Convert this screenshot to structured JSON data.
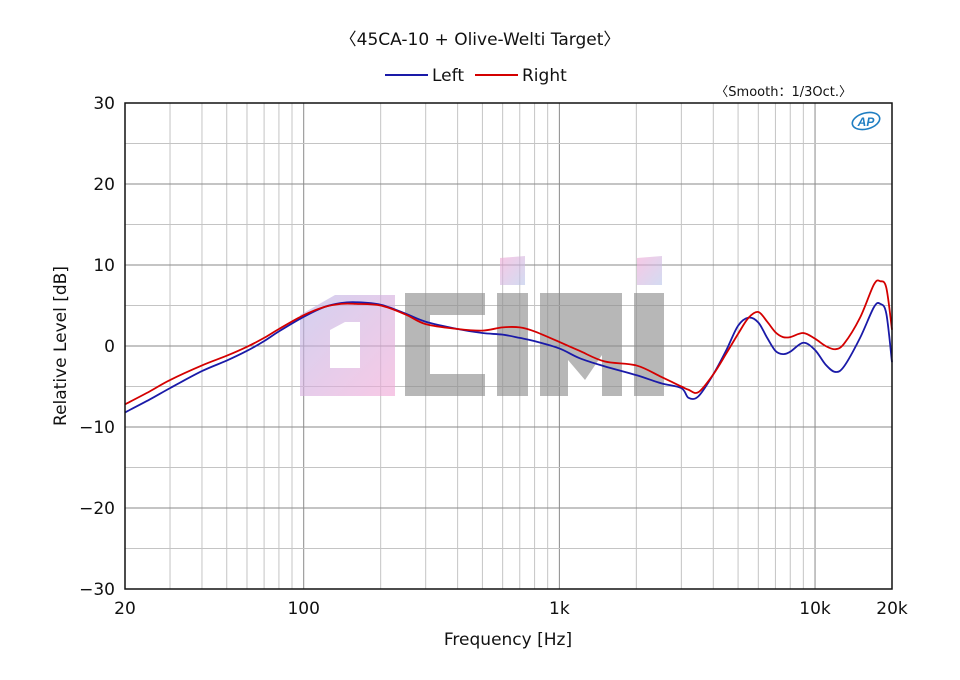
{
  "chart_data": {
    "type": "line",
    "title": "〈45CA-10 + Olive-Welti Target〉",
    "annotation": "〈Smooth：1/3Oct.〉",
    "logo": "AP",
    "watermark": "DCINSIDE",
    "xlabel": "Frequency [Hz]",
    "ylabel": "Relative Level [dB]",
    "x_scale": "log",
    "xlim": [
      20,
      20000
    ],
    "ylim": [
      -30,
      30
    ],
    "grid": true,
    "legend_position": "top-center",
    "x_ticks": [
      {
        "value": 20,
        "label": "20"
      },
      {
        "value": 100,
        "label": "100"
      },
      {
        "value": 1000,
        "label": "1k"
      },
      {
        "value": 10000,
        "label": "10k"
      },
      {
        "value": 20000,
        "label": "20k"
      }
    ],
    "y_ticks": [
      {
        "value": 30,
        "label": "30"
      },
      {
        "value": 20,
        "label": "20"
      },
      {
        "value": 10,
        "label": "10"
      },
      {
        "value": 0,
        "label": "0"
      },
      {
        "value": -10,
        "label": "−10"
      },
      {
        "value": -20,
        "label": "−20"
      },
      {
        "value": -30,
        "label": "−30"
      }
    ],
    "series": [
      {
        "name": "Left",
        "color": "#1a1aa8",
        "x": [
          20,
          25,
          30,
          40,
          50,
          60,
          70,
          80,
          100,
          120,
          140,
          160,
          200,
          250,
          300,
          400,
          500,
          600,
          700,
          800,
          1000,
          1200,
          1500,
          2000,
          2500,
          3000,
          3200,
          3500,
          4000,
          4500,
          5000,
          5500,
          6000,
          6500,
          7000,
          7500,
          8000,
          9000,
          10000,
          11000,
          12000,
          13000,
          15000,
          17000,
          18000,
          19000,
          20000
        ],
        "y": [
          -8.2,
          -6.6,
          -5.2,
          -3.1,
          -1.8,
          -0.6,
          0.6,
          1.8,
          3.6,
          4.8,
          5.3,
          5.4,
          5.1,
          4.0,
          3.0,
          2.1,
          1.6,
          1.4,
          1.0,
          0.6,
          -0.3,
          -1.5,
          -2.5,
          -3.6,
          -4.6,
          -5.2,
          -6.4,
          -6.2,
          -3.5,
          -0.5,
          2.5,
          3.5,
          2.9,
          1.0,
          -0.6,
          -1.0,
          -0.7,
          0.4,
          -0.5,
          -2.3,
          -3.2,
          -2.5,
          1.0,
          4.8,
          5.2,
          4.0,
          -2.0
        ]
      },
      {
        "name": "Right",
        "color": "#d40000",
        "x": [
          20,
          25,
          30,
          40,
          50,
          60,
          70,
          80,
          100,
          120,
          140,
          160,
          200,
          250,
          300,
          400,
          500,
          600,
          700,
          800,
          1000,
          1200,
          1500,
          2000,
          2500,
          3000,
          3200,
          3500,
          4000,
          4500,
          5000,
          5500,
          6000,
          6500,
          7000,
          7500,
          8000,
          9000,
          10000,
          11000,
          12000,
          13000,
          15000,
          17000,
          18000,
          19000,
          20000
        ],
        "y": [
          -7.2,
          -5.6,
          -4.2,
          -2.4,
          -1.2,
          -0.1,
          1.0,
          2.1,
          3.8,
          4.8,
          5.2,
          5.2,
          5.0,
          3.9,
          2.7,
          2.1,
          1.9,
          2.3,
          2.3,
          1.8,
          0.5,
          -0.6,
          -1.9,
          -2.4,
          -3.8,
          -5.0,
          -5.4,
          -5.7,
          -3.5,
          -0.9,
          1.5,
          3.5,
          4.2,
          3.0,
          1.7,
          1.1,
          1.1,
          1.6,
          0.9,
          0.0,
          -0.4,
          0.3,
          3.5,
          7.6,
          8.0,
          7.2,
          2.0
        ]
      }
    ]
  }
}
